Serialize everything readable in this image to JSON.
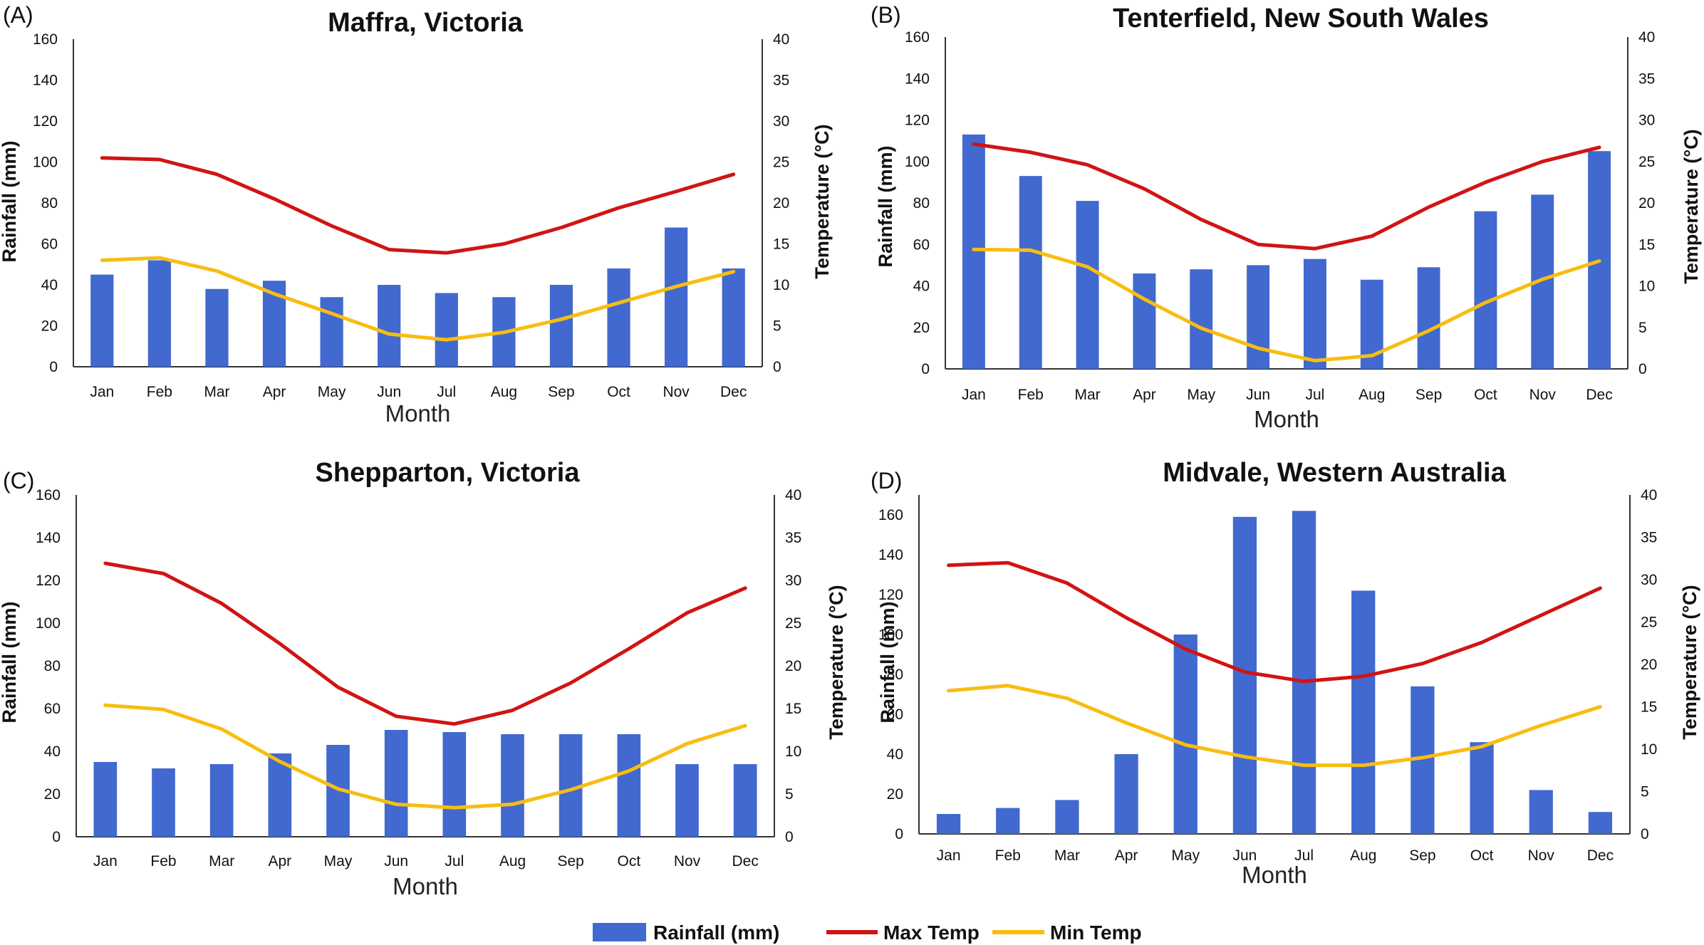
{
  "legend": {
    "rainfall": "Rainfall (mm)",
    "max_temp": "Max Temp",
    "min_temp": "Min Temp"
  },
  "colors": {
    "rainfall": "#4169CF",
    "max_temp": "#D11414",
    "min_temp": "#F7BD11",
    "axis": "#333333"
  },
  "chart_data": [
    {
      "type": "bar+line",
      "panel": "(A)",
      "title": "Maffra, Victoria",
      "xlabel": "Month",
      "ylabel": "Rainfall (mm)",
      "y2label": "Temperature (°C)",
      "ylim": [
        0,
        160
      ],
      "yticks": [
        0,
        20,
        40,
        60,
        80,
        100,
        120,
        140,
        160
      ],
      "y2lim": [
        0,
        40
      ],
      "y2ticks": [
        0,
        5,
        10,
        15,
        20,
        25,
        30,
        35,
        40
      ],
      "categories": [
        "Jan",
        "Feb",
        "Mar",
        "Apr",
        "May",
        "Jun",
        "Jul",
        "Aug",
        "Sep",
        "Oct",
        "Nov",
        "Dec"
      ],
      "series": [
        {
          "name": "Rainfall (mm)",
          "type": "bar",
          "axis": "left",
          "values": [
            45,
            52,
            38,
            42,
            34,
            40,
            36,
            34,
            40,
            48,
            68,
            48
          ]
        },
        {
          "name": "Max Temp",
          "type": "line",
          "axis": "right",
          "values": [
            25.5,
            25.3,
            23.5,
            20.5,
            17.2,
            14.3,
            13.9,
            15.0,
            17.0,
            19.4,
            21.4,
            23.5
          ]
        },
        {
          "name": "Min Temp",
          "type": "line",
          "axis": "right",
          "values": [
            13.0,
            13.3,
            11.7,
            8.9,
            6.5,
            4.0,
            3.3,
            4.2,
            5.8,
            7.8,
            9.8,
            11.6
          ]
        }
      ]
    },
    {
      "type": "bar+line",
      "panel": "(B)",
      "title": "Tenterfield, New South Wales",
      "xlabel": "Month",
      "ylabel": "Rainfall (mm)",
      "y2label": "Temperature (°C)",
      "ylim": [
        0,
        160
      ],
      "yticks": [
        0,
        20,
        40,
        60,
        80,
        100,
        120,
        140,
        160
      ],
      "y2lim": [
        0,
        40
      ],
      "y2ticks": [
        0,
        5,
        10,
        15,
        20,
        25,
        30,
        35,
        40
      ],
      "categories": [
        "Jan",
        "Feb",
        "Mar",
        "Apr",
        "May",
        "Jun",
        "Jul",
        "Aug",
        "Sep",
        "Oct",
        "Nov",
        "Dec"
      ],
      "series": [
        {
          "name": "Rainfall (mm)",
          "type": "bar",
          "axis": "left",
          "values": [
            113,
            93,
            81,
            46,
            48,
            50,
            53,
            43,
            49,
            76,
            84,
            105
          ]
        },
        {
          "name": "Max Temp",
          "type": "line",
          "axis": "right",
          "values": [
            27.1,
            26.1,
            24.6,
            21.7,
            18.0,
            15.0,
            14.5,
            16.0,
            19.5,
            22.5,
            25.0,
            26.7
          ]
        },
        {
          "name": "Min Temp",
          "type": "line",
          "axis": "right",
          "values": [
            14.4,
            14.3,
            12.3,
            8.4,
            4.9,
            2.5,
            1.0,
            1.6,
            4.6,
            8.0,
            10.8,
            13.0
          ]
        }
      ]
    },
    {
      "type": "bar+line",
      "panel": "(C)",
      "title": "Shepparton, Victoria",
      "xlabel": "Month",
      "ylabel": "Rainfall (mm)",
      "y2label": "Temperature (°C)",
      "ylim": [
        0,
        160
      ],
      "yticks": [
        0,
        20,
        40,
        60,
        80,
        100,
        120,
        140,
        160
      ],
      "y2lim": [
        0,
        40
      ],
      "y2ticks": [
        0,
        5,
        10,
        15,
        20,
        25,
        30,
        35,
        40
      ],
      "categories": [
        "Jan",
        "Feb",
        "Mar",
        "Apr",
        "May",
        "Jun",
        "Jul",
        "Aug",
        "Sep",
        "Oct",
        "Nov",
        "Dec"
      ],
      "series": [
        {
          "name": "Rainfall (mm)",
          "type": "bar",
          "axis": "left",
          "values": [
            35,
            32,
            34,
            39,
            43,
            50,
            49,
            48,
            48,
            48,
            34,
            34
          ]
        },
        {
          "name": "Max Temp",
          "type": "line",
          "axis": "right",
          "values": [
            32.0,
            30.8,
            27.3,
            22.6,
            17.5,
            14.1,
            13.2,
            14.8,
            18.0,
            22.0,
            26.2,
            29.1
          ]
        },
        {
          "name": "Min Temp",
          "type": "line",
          "axis": "right",
          "values": [
            15.4,
            14.9,
            12.6,
            8.8,
            5.6,
            3.8,
            3.4,
            3.8,
            5.5,
            7.7,
            10.9,
            13.0
          ]
        }
      ]
    },
    {
      "type": "bar+line",
      "panel": "(D)",
      "title": "Midvale, Western Australia",
      "xlabel": "Month",
      "ylabel": "Rainfall (mm)",
      "y2label": "Temperature (°C)",
      "ylim": [
        0,
        170
      ],
      "yticks": [
        0,
        20,
        40,
        60,
        80,
        100,
        120,
        140,
        160
      ],
      "y2lim": [
        0,
        40
      ],
      "y2ticks": [
        0,
        5,
        10,
        15,
        20,
        25,
        30,
        35,
        40
      ],
      "categories": [
        "Jan",
        "Feb",
        "Mar",
        "Apr",
        "May",
        "Jun",
        "Jul",
        "Aug",
        "Sep",
        "Oct",
        "Nov",
        "Dec"
      ],
      "series": [
        {
          "name": "Rainfall (mm)",
          "type": "bar",
          "axis": "left",
          "values": [
            10,
            13,
            17,
            40,
            100,
            159,
            162,
            122,
            74,
            46,
            22,
            11
          ]
        },
        {
          "name": "Max Temp",
          "type": "line",
          "axis": "right",
          "values": [
            31.7,
            32.0,
            29.6,
            25.5,
            21.8,
            19.1,
            18.0,
            18.6,
            20.1,
            22.6,
            25.8,
            29.0
          ]
        },
        {
          "name": "Min Temp",
          "type": "line",
          "axis": "right",
          "values": [
            16.9,
            17.5,
            16.0,
            13.1,
            10.5,
            9.1,
            8.1,
            8.1,
            9.0,
            10.3,
            12.8,
            15.0
          ]
        }
      ]
    }
  ]
}
